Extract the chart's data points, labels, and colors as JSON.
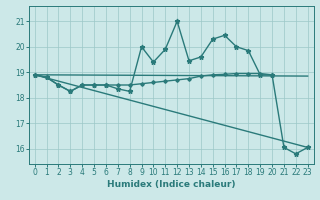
{
  "xlabel": "Humidex (Indice chaleur)",
  "xlim": [
    -0.5,
    23.5
  ],
  "ylim": [
    15.4,
    21.6
  ],
  "yticks": [
    16,
    17,
    18,
    19,
    20,
    21
  ],
  "xticks": [
    0,
    1,
    2,
    3,
    4,
    5,
    6,
    7,
    8,
    9,
    10,
    11,
    12,
    13,
    14,
    15,
    16,
    17,
    18,
    19,
    20,
    21,
    22,
    23
  ],
  "bg_color": "#cce8e8",
  "grid_color": "#9cc8c8",
  "line_color": "#2a7a7a",
  "line1_x": [
    0,
    1,
    2,
    3,
    4,
    5,
    6,
    7,
    8,
    9,
    10,
    11,
    12,
    13,
    14,
    15,
    16,
    17,
    18,
    19,
    20,
    21,
    22,
    23
  ],
  "line1_y": [
    18.9,
    18.8,
    18.5,
    18.25,
    18.5,
    18.5,
    18.5,
    18.35,
    18.25,
    20.0,
    19.4,
    19.9,
    21.0,
    19.45,
    19.6,
    20.3,
    20.45,
    20.0,
    19.85,
    18.9,
    18.9,
    16.05,
    15.8,
    16.05
  ],
  "line2_x": [
    0,
    1,
    2,
    3,
    4,
    5,
    6,
    7,
    8,
    9,
    10,
    11,
    12,
    13,
    14,
    15,
    16,
    17,
    18,
    19,
    20
  ],
  "line2_y": [
    18.9,
    18.8,
    18.5,
    18.25,
    18.5,
    18.5,
    18.5,
    18.5,
    18.5,
    18.55,
    18.6,
    18.65,
    18.7,
    18.75,
    18.85,
    18.9,
    18.92,
    18.95,
    18.95,
    18.95,
    18.9
  ],
  "line3_x": [
    0,
    23
  ],
  "line3_y": [
    18.9,
    18.85
  ],
  "line4_x": [
    0,
    23
  ],
  "line4_y": [
    18.9,
    16.05
  ],
  "lw": 1.0
}
